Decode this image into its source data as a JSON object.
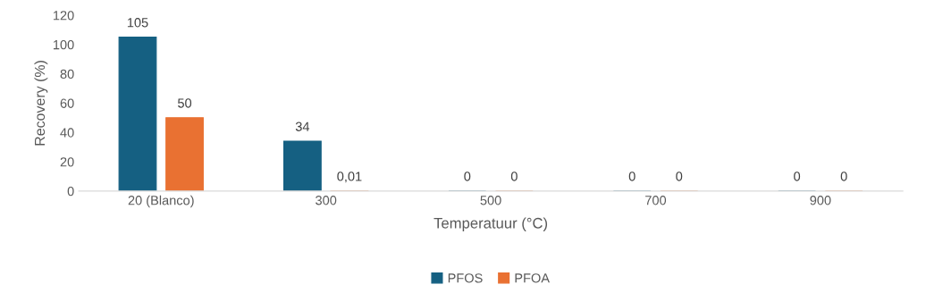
{
  "chart_data": {
    "type": "bar",
    "xlabel": "Temperatuur (°C)",
    "ylabel": "Recovery (%)",
    "categories": [
      "20 (Blanco)",
      "300",
      "500",
      "700",
      "900"
    ],
    "series": [
      {
        "name": "PFOS",
        "color": "#156082",
        "values": [
          105,
          34,
          0,
          0,
          0
        ],
        "value_labels": [
          "105",
          "34",
          "0",
          "0",
          "0"
        ]
      },
      {
        "name": "PFOA",
        "color": "#e97132",
        "values": [
          50,
          0.01,
          0,
          0,
          0
        ],
        "value_labels": [
          "50",
          "0,01",
          "0",
          "0",
          "0"
        ]
      }
    ],
    "ylim": [
      0,
      120
    ],
    "yticks": [
      0,
      20,
      40,
      60,
      80,
      100,
      120
    ],
    "grid": false,
    "legend": "bottom"
  }
}
